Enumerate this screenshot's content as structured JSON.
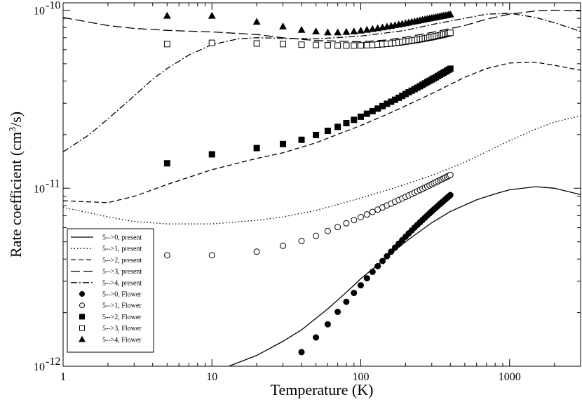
{
  "chart_data": {
    "type": "line",
    "title": "",
    "xlabel": "Temperature (K)",
    "ylabel_parts": [
      "Rate coefficient (cm",
      "3",
      "/s)"
    ],
    "xscale": "log",
    "yscale": "log",
    "xlim": [
      1,
      3000
    ],
    "ylim": [
      1e-12,
      1.1e-10
    ],
    "x_ticks": [
      {
        "value": 1,
        "label": "1"
      },
      {
        "value": 10,
        "label": "10"
      },
      {
        "value": 100,
        "label": "100"
      },
      {
        "value": 1000,
        "label": "1000"
      }
    ],
    "y_ticks": [
      {
        "value": 1e-12,
        "base": "10",
        "exp": "-12"
      },
      {
        "value": 1e-11,
        "base": "10",
        "exp": "-11"
      },
      {
        "value": 1e-10,
        "base": "10",
        "exp": "-10"
      }
    ],
    "legend_position": "bottom-left",
    "series": [
      {
        "name": "5-->0, present",
        "style": "solid",
        "x": [
          13,
          20,
          30,
          40,
          60,
          80,
          100,
          150,
          200,
          300,
          400,
          600,
          800,
          1000,
          1500,
          2000,
          3000
        ],
        "y": [
          1e-12,
          1.15e-12,
          1.38e-12,
          1.6e-12,
          2.1e-12,
          2.6e-12,
          3.1e-12,
          4.1e-12,
          5e-12,
          6.4e-12,
          7.4e-12,
          8.6e-12,
          9.3e-12,
          9.8e-12,
          1.02e-11,
          1e-11,
          9.2e-12
        ]
      },
      {
        "name": "5-->1, present",
        "style": "dotted",
        "x": [
          1,
          2,
          3,
          5,
          10,
          20,
          30,
          50,
          100,
          200,
          300,
          500,
          1000,
          1500,
          2000,
          3000
        ],
        "y": [
          7.8e-12,
          6.9e-12,
          6.5e-12,
          6.3e-12,
          6.3e-12,
          6.6e-12,
          6.9e-12,
          7.5e-12,
          8.8e-12,
          1.05e-11,
          1.18e-11,
          1.4e-11,
          1.85e-11,
          2.15e-11,
          2.35e-11,
          2.55e-11
        ]
      },
      {
        "name": "5-->2, present",
        "style": "dashed",
        "x": [
          1,
          2,
          3,
          5,
          10,
          20,
          30,
          50,
          100,
          150,
          200,
          300,
          500,
          700,
          1000,
          1500,
          2000,
          3000
        ],
        "y": [
          8.5e-12,
          8.3e-12,
          9e-12,
          1.05e-11,
          1.27e-11,
          1.47e-11,
          1.58e-11,
          1.8e-11,
          2.25e-11,
          2.6e-11,
          2.9e-11,
          3.4e-11,
          4.2e-11,
          4.7e-11,
          5.05e-11,
          5.1e-11,
          4.9e-11,
          4.6e-11
        ]
      },
      {
        "name": "5-->3, present",
        "style": "longdash",
        "x": [
          1,
          2,
          3,
          5,
          10,
          20,
          30,
          50,
          100,
          150,
          200,
          300,
          500,
          700,
          1000,
          1500,
          2000,
          3000
        ],
        "y": [
          9.1e-11,
          8.2e-11,
          7.9e-11,
          7.7e-11,
          7.55e-11,
          7.3e-11,
          7e-11,
          6.75e-11,
          6.65e-11,
          6.8e-11,
          7.05e-11,
          7.5e-11,
          8.2e-11,
          8.9e-11,
          9.5e-11,
          9.9e-11,
          1e-10,
          9.9e-11
        ]
      },
      {
        "name": "5-->4, present",
        "style": "dashdot",
        "x": [
          1,
          1.5,
          2,
          3,
          4,
          5,
          7,
          10,
          15,
          20,
          30,
          50,
          100,
          200,
          300,
          500,
          700,
          1000,
          1500,
          2000,
          3000
        ],
        "y": [
          1.6e-11,
          2e-11,
          2.45e-11,
          3.3e-11,
          4.1e-11,
          4.7e-11,
          5.6e-11,
          6.4e-11,
          6.9e-11,
          7e-11,
          6.95e-11,
          6.9e-11,
          7.15e-11,
          7.7e-11,
          8.3e-11,
          9e-11,
          9.5e-11,
          9.6e-11,
          9.1e-11,
          8.5e-11,
          7.6e-11
        ]
      },
      {
        "name": "5-->0, Flower",
        "style": "filled-circle",
        "x": [
          40,
          50,
          60,
          70,
          80,
          90,
          100,
          110,
          120,
          130,
          140,
          150,
          160,
          170,
          180,
          190,
          200,
          210,
          220,
          230,
          240,
          250,
          260,
          270,
          280,
          290,
          300,
          310,
          320,
          330,
          340,
          350,
          360,
          370,
          380,
          390,
          400
        ],
        "y": [
          1.2e-12,
          1.45e-12,
          1.72e-12,
          2.02e-12,
          2.3e-12,
          2.58e-12,
          2.85e-12,
          3.12e-12,
          3.39e-12,
          3.65e-12,
          3.9e-12,
          4.15e-12,
          4.4e-12,
          4.64e-12,
          4.88e-12,
          5.11e-12,
          5.34e-12,
          5.57e-12,
          5.79e-12,
          6.01e-12,
          6.22e-12,
          6.43e-12,
          6.63e-12,
          6.83e-12,
          7.03e-12,
          7.22e-12,
          7.41e-12,
          7.6e-12,
          7.78e-12,
          7.96e-12,
          8.14e-12,
          8.31e-12,
          8.48e-12,
          8.65e-12,
          8.82e-12,
          8.98e-12,
          9.15e-12
        ]
      },
      {
        "name": "5-->1, Flower",
        "style": "open-circle",
        "x": [
          5,
          10,
          20,
          30,
          40,
          50,
          60,
          70,
          80,
          90,
          100,
          110,
          120,
          130,
          140,
          150,
          160,
          170,
          180,
          190,
          200,
          210,
          220,
          230,
          240,
          250,
          260,
          270,
          280,
          290,
          300,
          310,
          320,
          330,
          340,
          350,
          360,
          370,
          380,
          390,
          400
        ],
        "y": [
          4.2e-12,
          4.2e-12,
          4.4e-12,
          4.75e-12,
          5.05e-12,
          5.4e-12,
          5.75e-12,
          6.05e-12,
          6.35e-12,
          6.62e-12,
          6.88e-12,
          7.12e-12,
          7.36e-12,
          7.58e-12,
          7.8e-12,
          8e-12,
          8.2e-12,
          8.4e-12,
          8.58e-12,
          8.76e-12,
          8.94e-12,
          9.11e-12,
          9.28e-12,
          9.45e-12,
          9.61e-12,
          9.77e-12,
          9.93e-12,
          1.008e-11,
          1.023e-11,
          1.038e-11,
          1.053e-11,
          1.067e-11,
          1.081e-11,
          1.095e-11,
          1.109e-11,
          1.122e-11,
          1.135e-11,
          1.148e-11,
          1.161e-11,
          1.174e-11,
          1.187e-11
        ]
      },
      {
        "name": "5-->2, Flower",
        "style": "filled-square",
        "x": [
          5,
          10,
          20,
          30,
          40,
          50,
          60,
          70,
          80,
          90,
          100,
          110,
          120,
          130,
          140,
          150,
          160,
          170,
          180,
          190,
          200,
          210,
          220,
          230,
          240,
          250,
          260,
          270,
          280,
          290,
          300,
          310,
          320,
          330,
          340,
          350,
          360,
          370,
          380,
          390,
          400
        ],
        "y": [
          1.38e-11,
          1.55e-11,
          1.68e-11,
          1.77e-11,
          1.87e-11,
          1.99e-11,
          2.1e-11,
          2.21e-11,
          2.32e-11,
          2.42e-11,
          2.52e-11,
          2.62e-11,
          2.71e-11,
          2.8e-11,
          2.89e-11,
          2.98e-11,
          3.06e-11,
          3.14e-11,
          3.22e-11,
          3.3e-11,
          3.38e-11,
          3.46e-11,
          3.53e-11,
          3.6e-11,
          3.67e-11,
          3.74e-11,
          3.81e-11,
          3.88e-11,
          3.95e-11,
          4.01e-11,
          4.08e-11,
          4.14e-11,
          4.2e-11,
          4.27e-11,
          4.33e-11,
          4.39e-11,
          4.45e-11,
          4.51e-11,
          4.57e-11,
          4.63e-11,
          4.69e-11
        ]
      },
      {
        "name": "5-->3, Flower",
        "style": "open-square",
        "x": [
          5,
          10,
          20,
          30,
          40,
          50,
          60,
          70,
          80,
          90,
          100,
          110,
          120,
          130,
          140,
          150,
          160,
          170,
          180,
          190,
          200,
          210,
          220,
          230,
          240,
          250,
          260,
          270,
          280,
          290,
          300,
          310,
          320,
          330,
          340,
          350,
          360,
          370,
          380,
          390,
          400
        ],
        "y": [
          6.45e-11,
          6.55e-11,
          6.5e-11,
          6.45e-11,
          6.4e-11,
          6.38e-11,
          6.35e-11,
          6.33e-11,
          6.33e-11,
          6.33e-11,
          6.34e-11,
          6.36e-11,
          6.38e-11,
          6.41e-11,
          6.44e-11,
          6.47e-11,
          6.5e-11,
          6.54e-11,
          6.58e-11,
          6.62e-11,
          6.66e-11,
          6.7e-11,
          6.74e-11,
          6.78e-11,
          6.82e-11,
          6.86e-11,
          6.9e-11,
          6.94e-11,
          6.98e-11,
          7.02e-11,
          7.06e-11,
          7.1e-11,
          7.14e-11,
          7.18e-11,
          7.22e-11,
          7.26e-11,
          7.3e-11,
          7.34e-11,
          7.38e-11,
          7.42e-11,
          7.46e-11
        ]
      },
      {
        "name": "5-->4, Flower",
        "style": "filled-triangle",
        "x": [
          5,
          10,
          20,
          30,
          40,
          50,
          60,
          70,
          80,
          90,
          100,
          110,
          120,
          130,
          140,
          150,
          160,
          170,
          180,
          190,
          200,
          210,
          220,
          230,
          240,
          250,
          260,
          270,
          280,
          290,
          300,
          310,
          320,
          330,
          340,
          350,
          360,
          370,
          380,
          390,
          400
        ],
        "y": [
          9.3e-11,
          9.3e-11,
          8.6e-11,
          8.1e-11,
          7.75e-11,
          7.6e-11,
          7.5e-11,
          7.5e-11,
          7.55e-11,
          7.6e-11,
          7.68e-11,
          7.76e-11,
          7.84e-11,
          7.92e-11,
          8e-11,
          8.08e-11,
          8.16e-11,
          8.24e-11,
          8.31e-11,
          8.38e-11,
          8.45e-11,
          8.52e-11,
          8.59e-11,
          8.65e-11,
          8.71e-11,
          8.77e-11,
          8.83e-11,
          8.89e-11,
          8.94e-11,
          8.99e-11,
          9.04e-11,
          9.09e-11,
          9.14e-11,
          9.19e-11,
          9.23e-11,
          9.27e-11,
          9.31e-11,
          9.35e-11,
          9.39e-11,
          9.43e-11,
          9.47e-11
        ]
      }
    ]
  }
}
